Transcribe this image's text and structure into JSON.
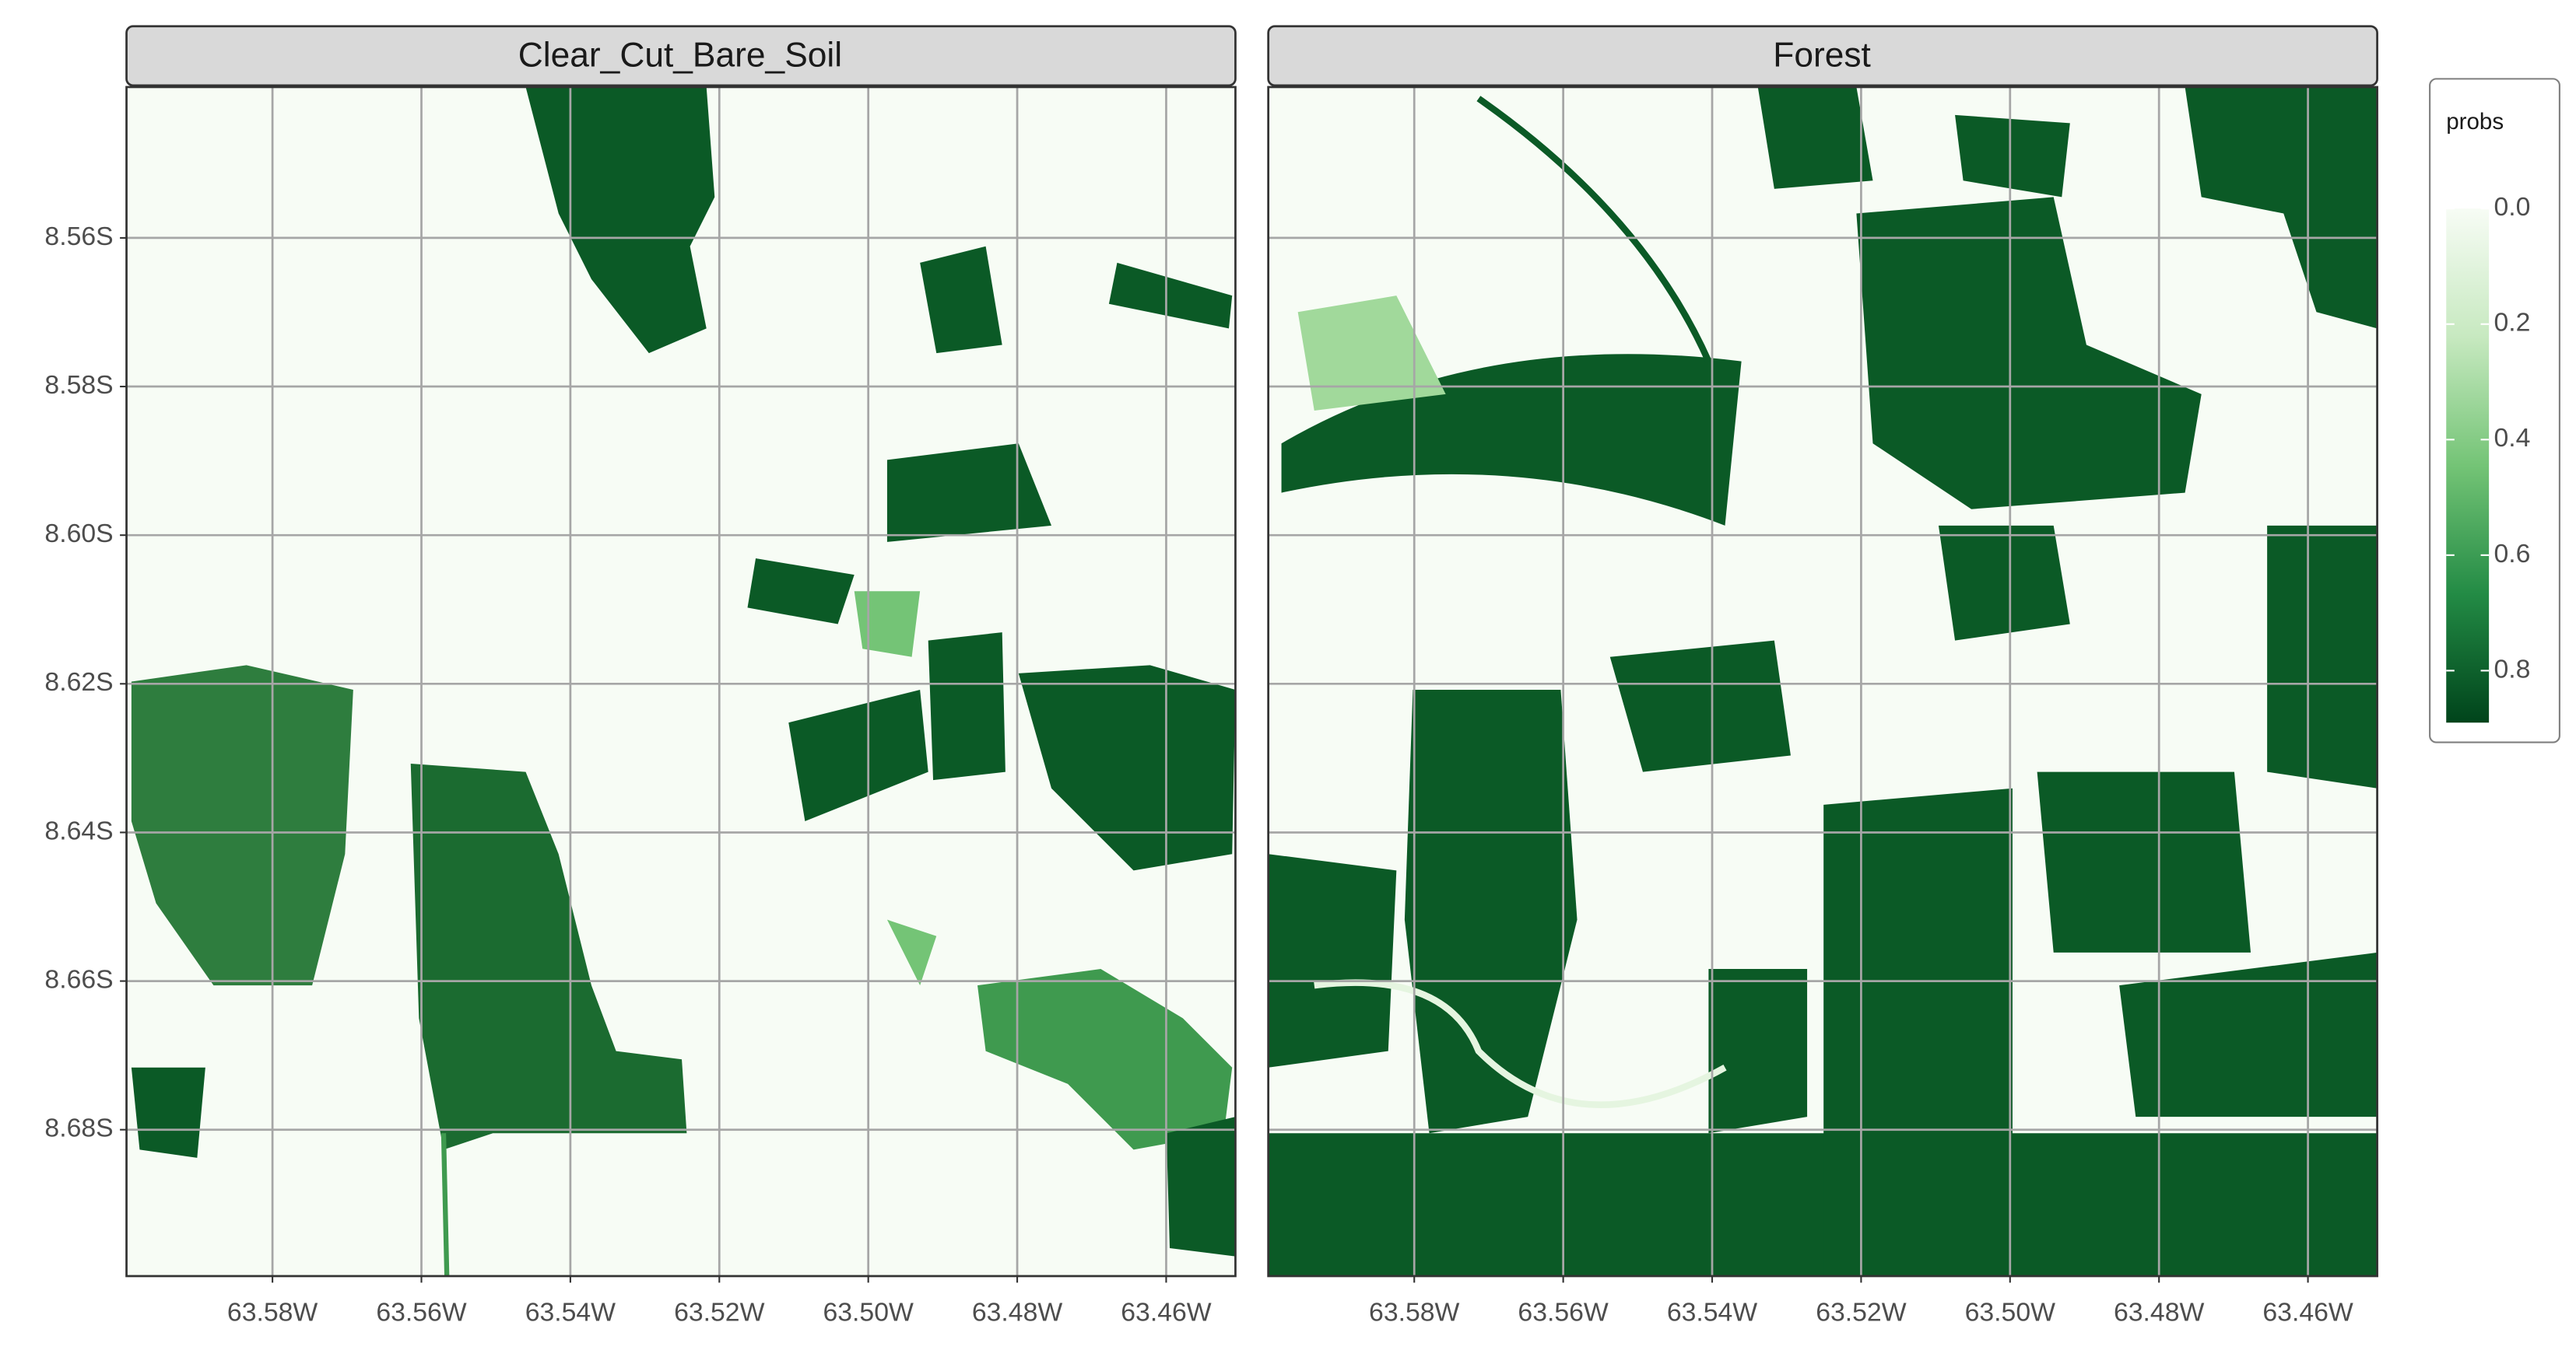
{
  "chart_data": {
    "type": "raster",
    "panels": [
      {
        "title": "Clear_Cut_Bare_Soil"
      },
      {
        "title": "Forest"
      }
    ],
    "xlim": [
      -63.5996,
      -63.4507
    ],
    "xticks": [
      {
        "value": -63.58,
        "label": "63.58W"
      },
      {
        "value": -63.56,
        "label": "63.56W"
      },
      {
        "value": -63.54,
        "label": "63.54W"
      },
      {
        "value": -63.52,
        "label": "63.52W"
      },
      {
        "value": -63.5,
        "label": "63.50W"
      },
      {
        "value": -63.48,
        "label": "63.48W"
      },
      {
        "value": -63.46,
        "label": "63.46W"
      }
    ],
    "ylim": [
      -8.6997,
      -8.5397
    ],
    "yticks": [
      {
        "value": -8.56,
        "label": "8.56S"
      },
      {
        "value": -8.58,
        "label": "8.58S"
      },
      {
        "value": -8.6,
        "label": "8.60S"
      },
      {
        "value": -8.62,
        "label": "8.62S"
      },
      {
        "value": -8.64,
        "label": "8.64S"
      },
      {
        "value": -8.66,
        "label": "8.66S"
      },
      {
        "value": -8.68,
        "label": "8.68S"
      }
    ],
    "grid": true,
    "legend": {
      "title": "probs",
      "position": "right",
      "limits": [
        0,
        0.89
      ],
      "colors": [
        "#f7fcf5",
        "#c7e9c0",
        "#74c476",
        "#238b45",
        "#00441b"
      ],
      "ticks": [
        {
          "value": 0,
          "label": "0.0"
        },
        0.2,
        0.4,
        0.6,
        0.8
      ]
    }
  }
}
